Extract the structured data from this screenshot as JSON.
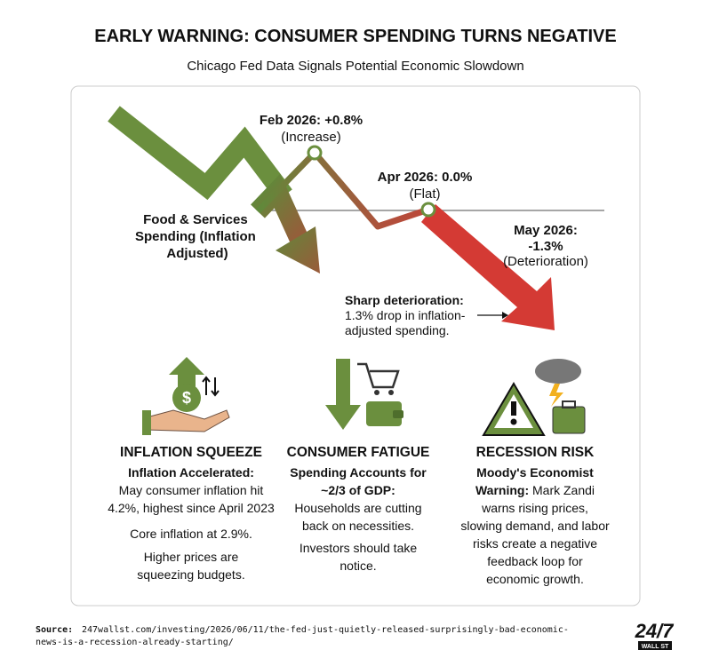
{
  "header": {
    "title": "EARLY WARNING: CONSUMER SPENDING TURNS NEGATIVE",
    "subtitle": "Chicago Fed Data Signals Potential Economic Slowdown"
  },
  "chart": {
    "series_label": [
      "Food & Services",
      "Spending (Inflation",
      "Adjusted)"
    ],
    "points": [
      {
        "lines": [
          "Feb 2026: +0.8%"
        ],
        "note": "(Increase)"
      },
      {
        "lines": [
          "Apr 2026: 0.0%"
        ],
        "note": "(Flat)"
      },
      {
        "lines": [
          "May 2026:",
          "-1.3%"
        ],
        "note": "(Deterioration)"
      }
    ],
    "callout": {
      "title": "Sharp deterioration:",
      "lines": [
        "1.3% drop in inflation-",
        "adjusted spending."
      ]
    }
  },
  "panels": [
    {
      "title": "INFLATION SQUEEZE",
      "lead": [
        "Inflation Accelerated:"
      ],
      "body": [
        "May consumer inflation hit",
        "4.2%, highest since April 2023"
      ],
      "extra": [
        [
          "Core inflation at 2.9%."
        ],
        [
          "Higher prices are",
          "squeezing budgets."
        ]
      ]
    },
    {
      "title": "CONSUMER FATIGUE",
      "lead": [
        "Spending Accounts for",
        "~2/3 of GDP:"
      ],
      "body": [
        "Households are cutting",
        "back on necessities."
      ],
      "extra": [
        [
          "Investors should take",
          "notice."
        ]
      ]
    },
    {
      "title": "RECESSION RISK",
      "lead": [
        "Moody's Economist",
        "Warning:"
      ],
      "body": [
        "Mark Zandi",
        "warns rising prices,",
        "slowing demand, and labor",
        "risks create a negative",
        "feedback loop for",
        "economic growth."
      ],
      "extra": []
    }
  ],
  "footer": {
    "source_label": "Source:",
    "source_lines": [
      "247wallst.com/investing/2026/06/11/the-fed-just-quietly-released-surprisingly-bad-economic-",
      "news-is-a-recession-already-starting/"
    ],
    "logo": "24/7",
    "logo_sub": "WALL ST"
  }
}
